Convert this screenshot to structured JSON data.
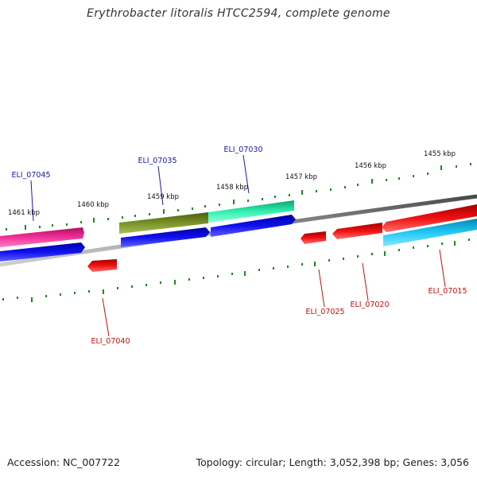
{
  "title": "Erythrobacter litoralis HTCC2594, complete genome",
  "footer": {
    "accession": "Accession: NC_007722",
    "summary": "Topology: circular; Length: 3,052,398 bp; Genes: 3,056"
  },
  "colors": {
    "backbone": "#7a7a7a",
    "tick": "#1a7a1a",
    "label_top": "#1a1aa0",
    "label_bottom": "#c01010",
    "leader_top": "#1a1aa0",
    "leader_bottom": "#c01010"
  },
  "ticks": [
    "1461 kbp",
    "1460 kbp",
    "1459 kbp",
    "1458 kbp",
    "1457 kbp",
    "1456 kbp",
    "1455 kbp"
  ],
  "genes": [
    {
      "name": "ELI_07045",
      "strand": "top",
      "color": "#e8208a"
    },
    {
      "name": "ELI_07035",
      "strand": "top",
      "color": "#6f8a22"
    },
    {
      "name": "ELI_07030",
      "strand": "top",
      "color": "#22e0a0"
    },
    {
      "name": "ELI_07040",
      "strand": "bottom",
      "color": "#e01010"
    },
    {
      "name": "ELI_07025",
      "strand": "bottom",
      "color": "#e01010"
    },
    {
      "name": "ELI_07020",
      "strand": "bottom",
      "color": "#e01010"
    },
    {
      "name": "ELI_07015",
      "strand": "bottom",
      "color": "#18c0f0"
    }
  ]
}
